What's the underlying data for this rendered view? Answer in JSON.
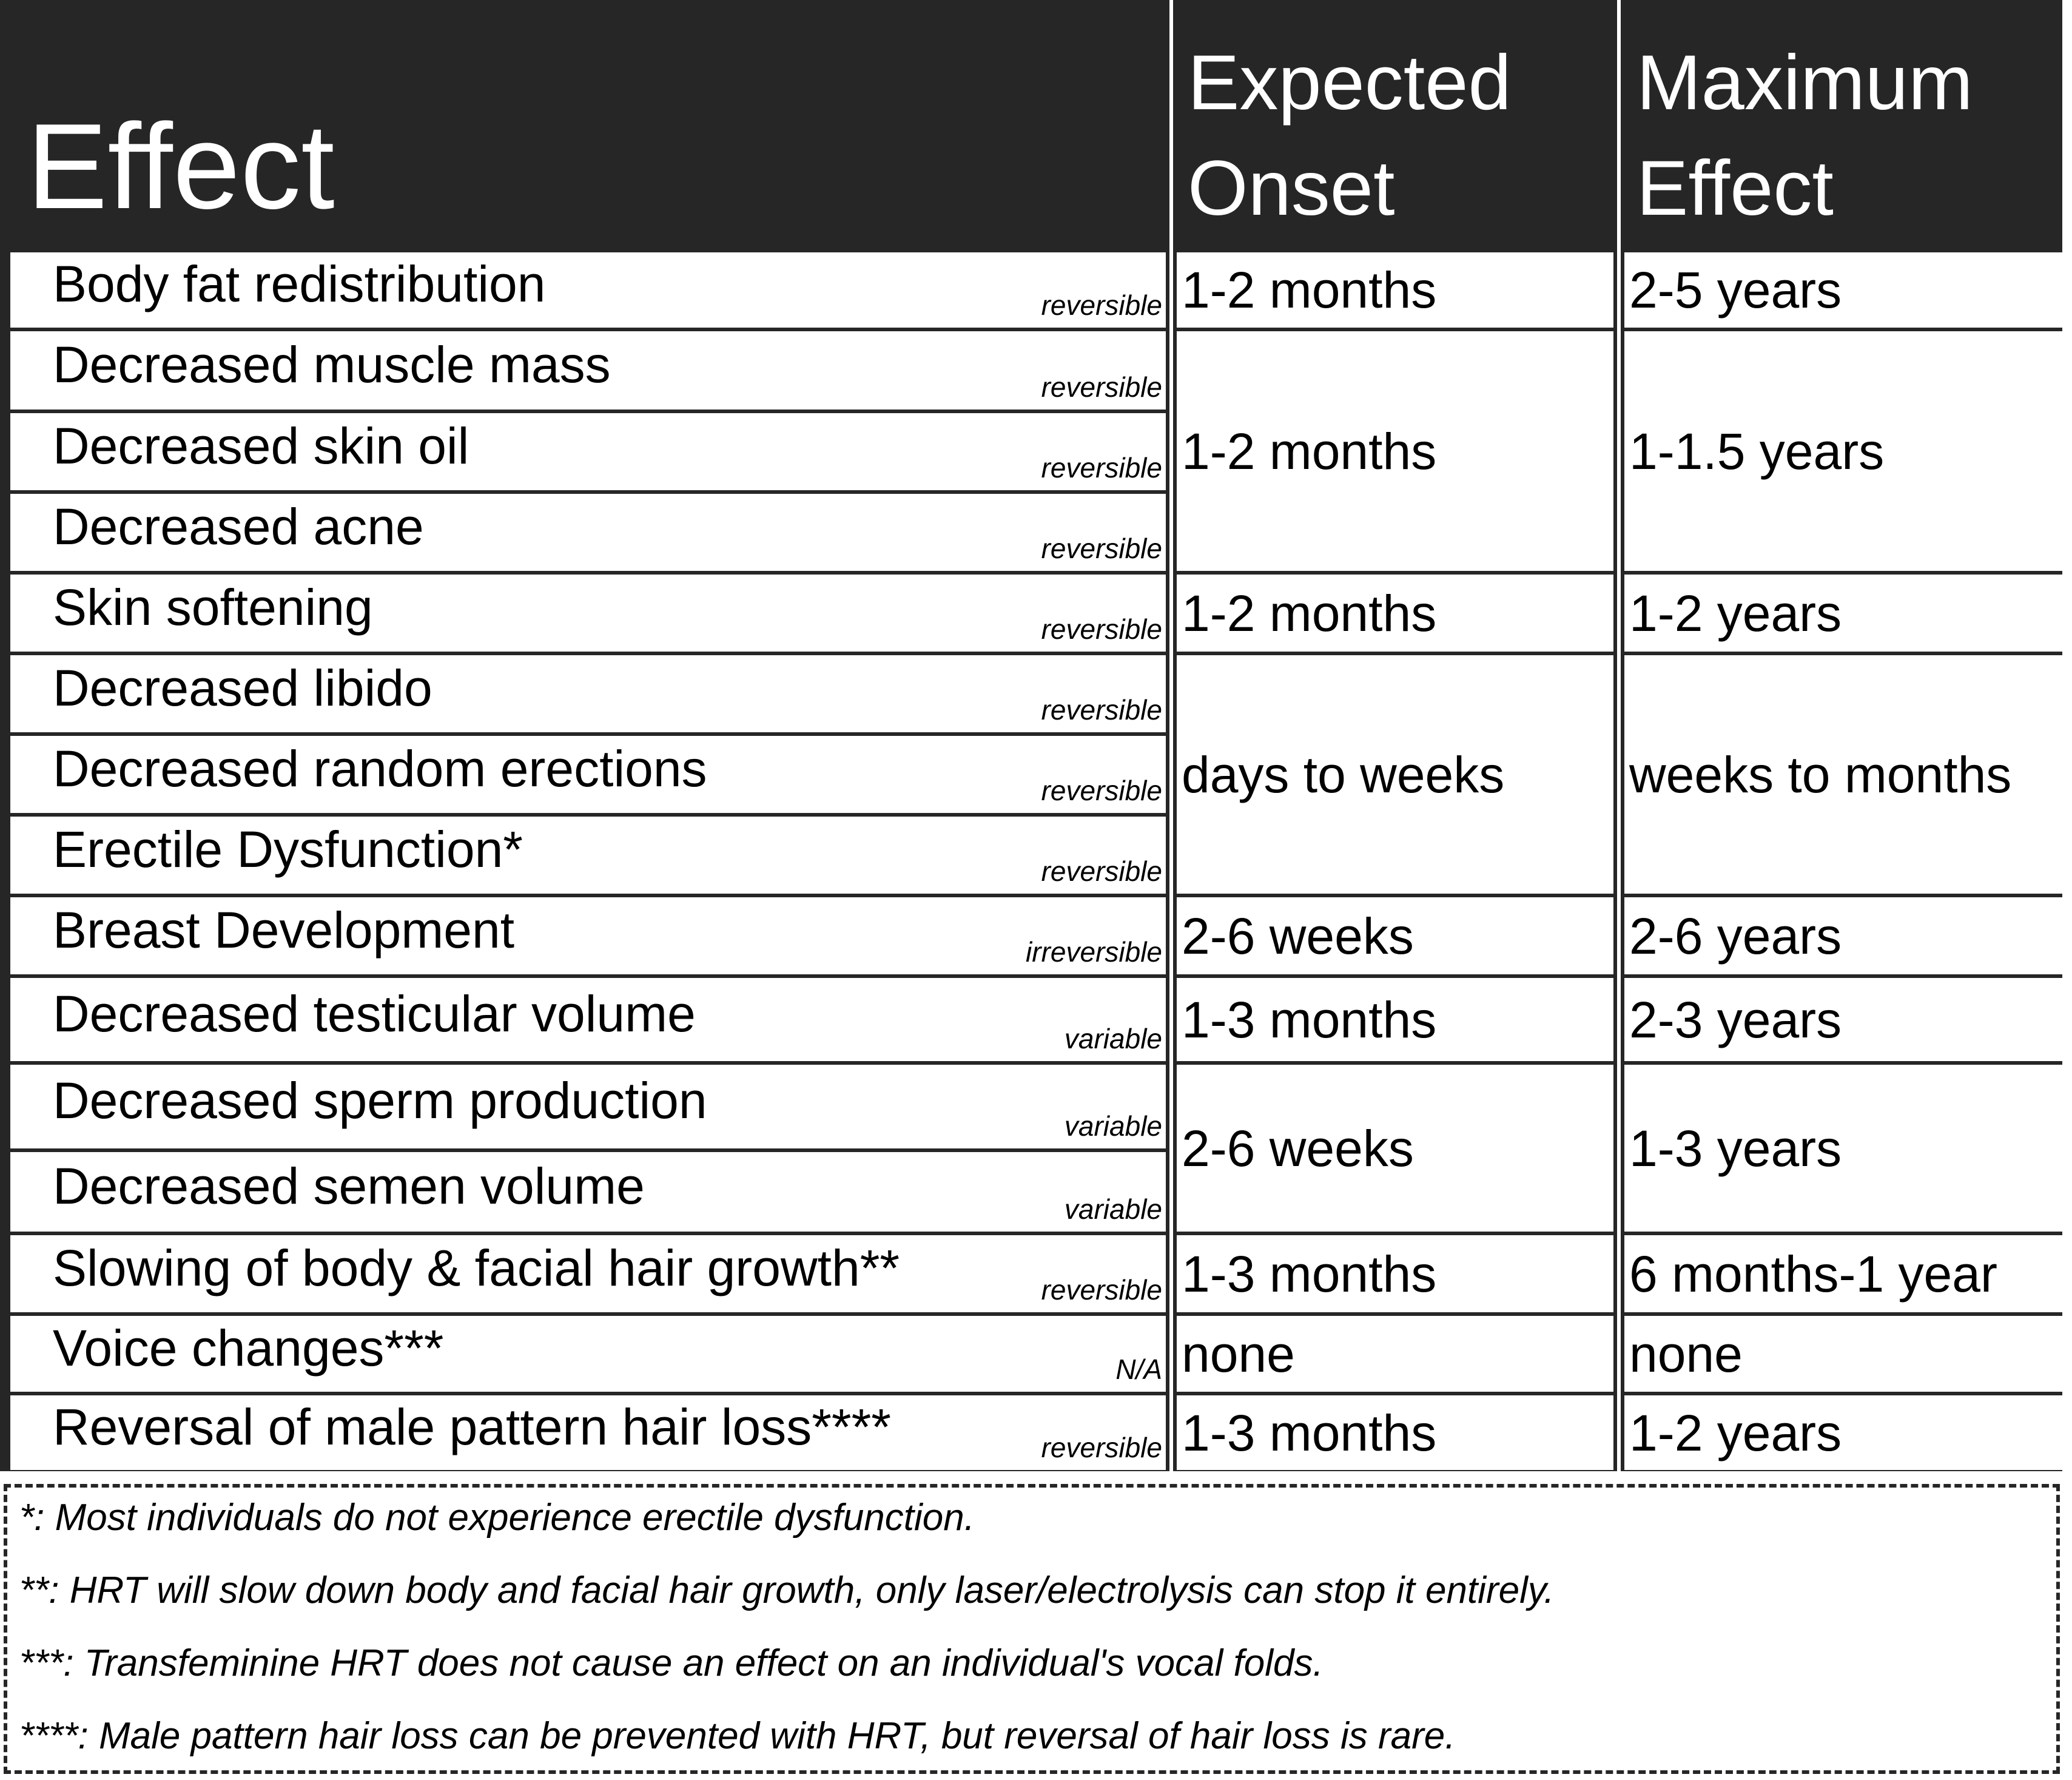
{
  "header": {
    "effect": "Effect",
    "onset_line1": "Expected",
    "onset_line2": "Onset",
    "max_line1": "Maximum",
    "max_line2": "Effect"
  },
  "rows": [
    {
      "effect": "Body fat redistribution",
      "tag": "reversible"
    },
    {
      "effect": "Decreased muscle mass",
      "tag": "reversible"
    },
    {
      "effect": "Decreased skin oil",
      "tag": "reversible"
    },
    {
      "effect": "Decreased acne",
      "tag": "reversible"
    },
    {
      "effect": "Skin softening",
      "tag": "reversible"
    },
    {
      "effect": "Decreased libido",
      "tag": "reversible"
    },
    {
      "effect": "Decreased random erections",
      "tag": "reversible"
    },
    {
      "effect": "Erectile Dysfunction*",
      "tag": "reversible"
    },
    {
      "effect": "Breast Development",
      "tag": "irreversible"
    },
    {
      "effect": "Decreased testicular volume",
      "tag": "variable"
    },
    {
      "effect": "Decreased sperm production",
      "tag": "variable"
    },
    {
      "effect": "Decreased semen volume",
      "tag": "variable"
    },
    {
      "effect": "Slowing of body & facial hair growth**",
      "tag": "reversible"
    },
    {
      "effect": "Voice changes***",
      "tag": "N/A"
    },
    {
      "effect": "Reversal of male pattern hair loss****",
      "tag": "reversible"
    }
  ],
  "groups": [
    {
      "start": 0,
      "span": 1,
      "onset": "1-2 months",
      "max": "2-5 years"
    },
    {
      "start": 1,
      "span": 3,
      "onset": "1-2 months",
      "max": "1-1.5 years"
    },
    {
      "start": 4,
      "span": 1,
      "onset": "1-2 months",
      "max": "1-2 years"
    },
    {
      "start": 5,
      "span": 3,
      "onset": "days to weeks",
      "max": "weeks to months"
    },
    {
      "start": 8,
      "span": 1,
      "onset": "2-6 weeks",
      "max": "2-6 years"
    },
    {
      "start": 9,
      "span": 1,
      "onset": "1-3 months",
      "max": "2-3 years"
    },
    {
      "start": 10,
      "span": 2,
      "onset": "2-6 weeks",
      "max": "1-3 years"
    },
    {
      "start": 12,
      "span": 1,
      "onset": "1-3 months",
      "max": "6 months-1 year"
    },
    {
      "start": 13,
      "span": 1,
      "onset": "none",
      "max": "none"
    },
    {
      "start": 14,
      "span": 1,
      "onset": "1-3 months",
      "max": "1-2 years"
    }
  ],
  "footnotes": [
    "*: Most individuals do not experience erectile dysfunction.",
    "**: HRT will slow down body and facial hair growth, only laser/electrolysis can stop it entirely.",
    "***: Transfeminine HRT does not cause an effect on an individual's vocal folds.",
    "****: Male pattern hair loss can be prevented with HRT, but reversal of hair loss is rare."
  ],
  "colors": {
    "header_bg": "#262626",
    "text_on_header": "#ffffff",
    "border": "#262626"
  }
}
